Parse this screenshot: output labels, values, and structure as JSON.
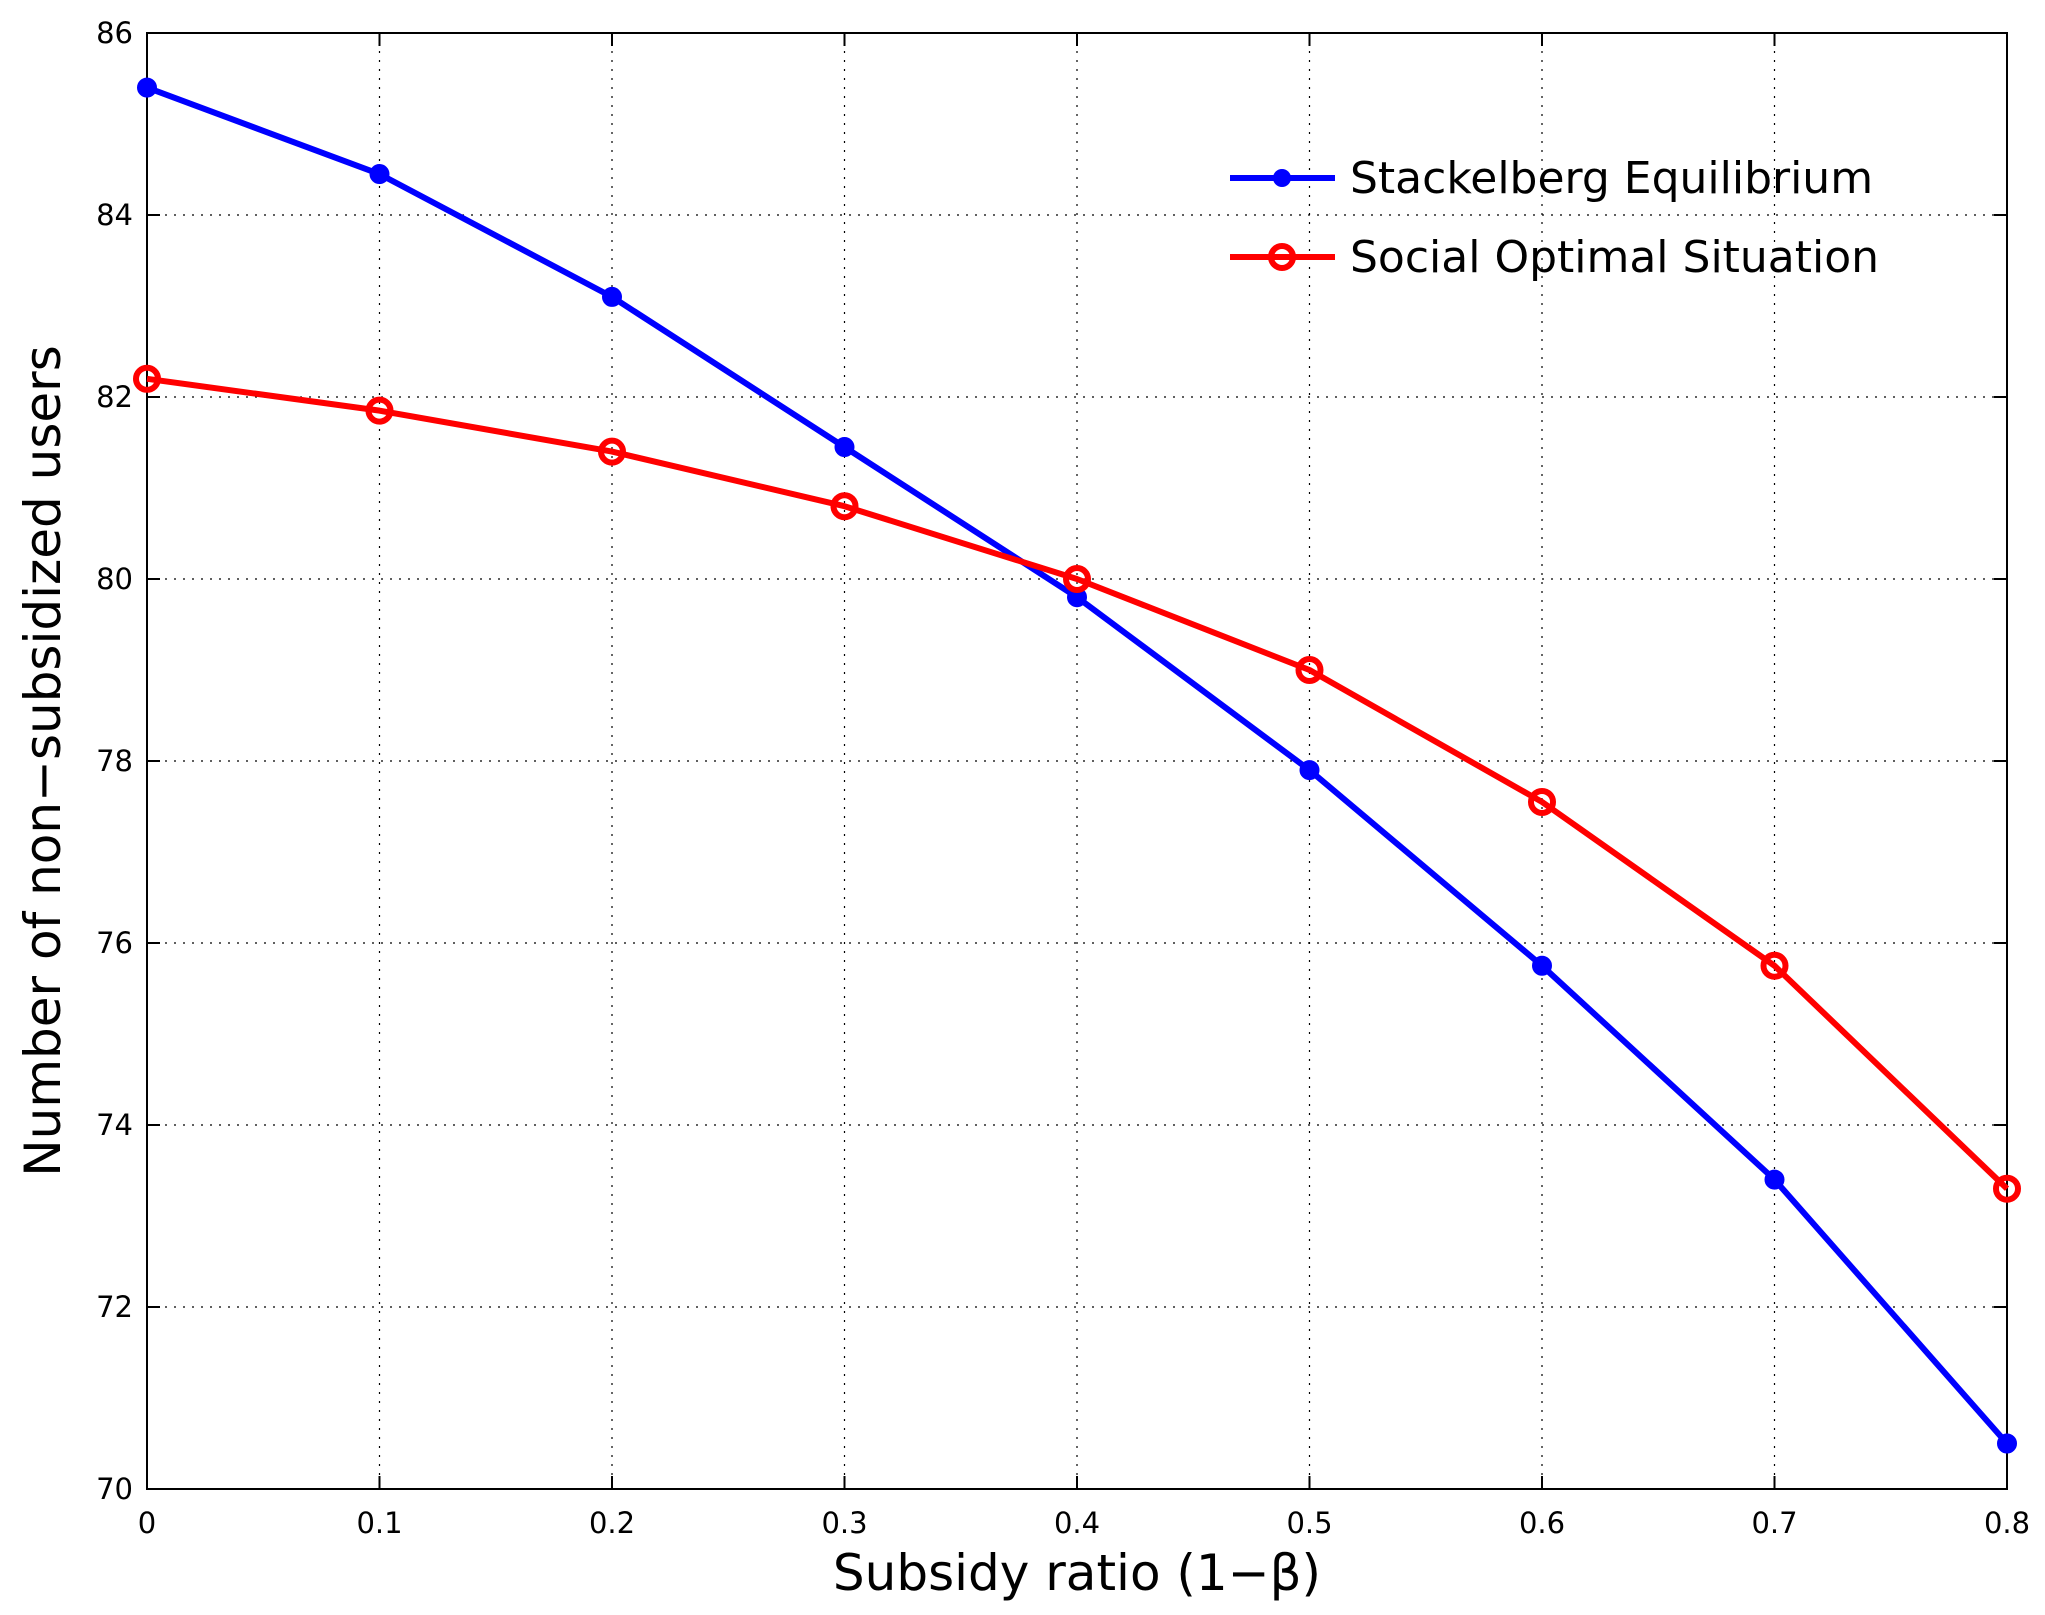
{
  "chart_data": {
    "type": "line",
    "title": "",
    "xlabel": "Subsidy ratio (1−β)",
    "ylabel": "Number of non−subsidized users",
    "xlim": [
      0,
      0.8
    ],
    "ylim": [
      70,
      86
    ],
    "x_ticks": [
      "0",
      "0.1",
      "0.2",
      "0.3",
      "0.4",
      "0.5",
      "0.6",
      "0.7",
      "0.8"
    ],
    "y_ticks": [
      "70",
      "72",
      "74",
      "76",
      "78",
      "80",
      "82",
      "84",
      "86"
    ],
    "grid": true,
    "legend_position": "top-right",
    "x": [
      0,
      0.1,
      0.2,
      0.3,
      0.4,
      0.5,
      0.6,
      0.7,
      0.8
    ],
    "series": [
      {
        "name": "Stackelberg Equilibrium",
        "color": "#0000ff",
        "marker": "filled-circle",
        "values": [
          85.4,
          84.45,
          83.1,
          81.45,
          79.8,
          77.9,
          75.75,
          73.4,
          70.5
        ]
      },
      {
        "name": "Social Optimal Situation",
        "color": "#ff0000",
        "marker": "open-circle",
        "values": [
          82.2,
          81.85,
          81.4,
          80.8,
          80.0,
          79.0,
          77.55,
          75.75,
          73.3
        ]
      }
    ]
  }
}
